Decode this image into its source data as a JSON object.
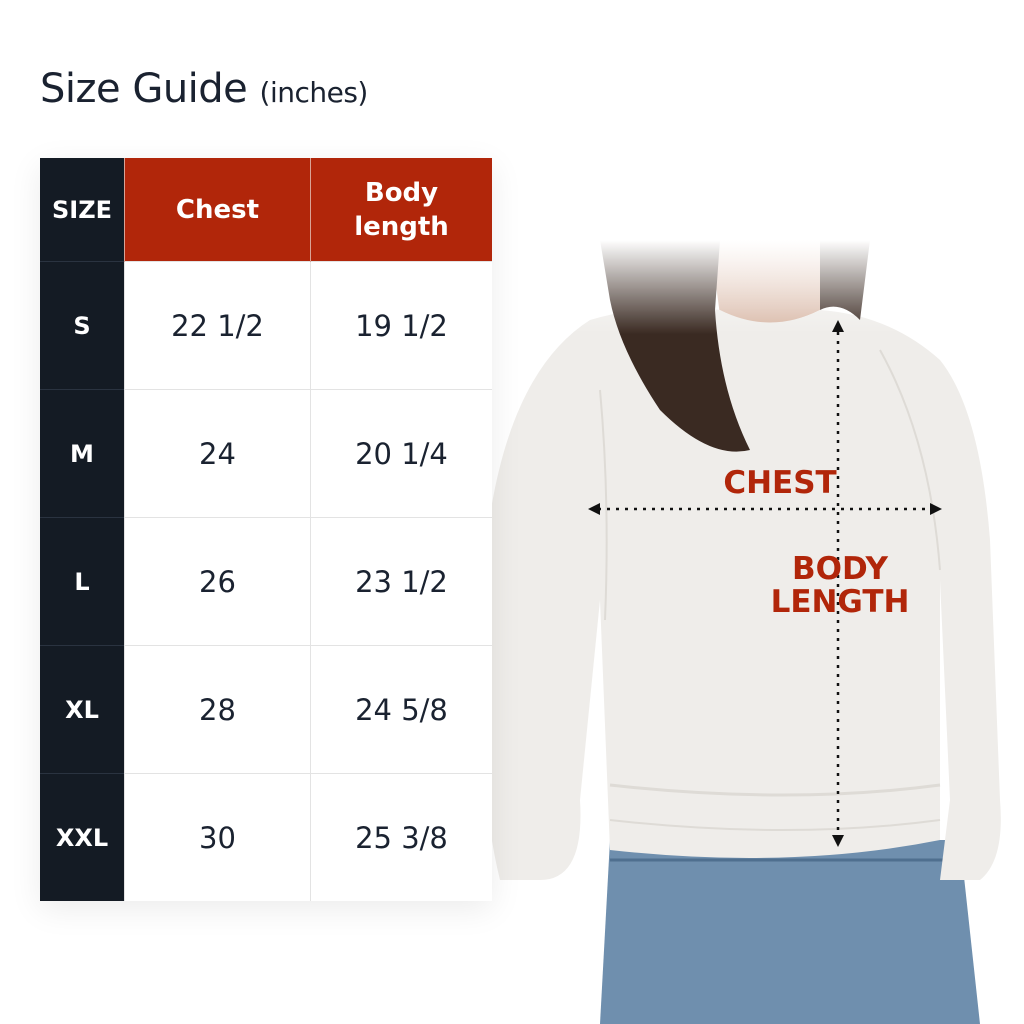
{
  "title": {
    "main": "Size Guide",
    "unit": "(inches)"
  },
  "table": {
    "headers": [
      "SIZE",
      "Chest",
      "Body length"
    ],
    "rows": [
      {
        "size": "S",
        "chest": "22 1/2",
        "body_length": "19 1/2"
      },
      {
        "size": "M",
        "chest": "24",
        "body_length": "20 1/4"
      },
      {
        "size": "L",
        "chest": "26",
        "body_length": "23 1/2"
      },
      {
        "size": "XL",
        "chest": "28",
        "body_length": "24 5/8"
      },
      {
        "size": "XXL",
        "chest": "30",
        "body_length": "25 3/8"
      }
    ]
  },
  "diagram": {
    "chest_label": "CHEST",
    "body_length_label_1": "BODY",
    "body_length_label_2": "LENGTH"
  },
  "colors": {
    "accent": "#b1260a",
    "dark": "#141b24",
    "text": "#1a2230"
  }
}
